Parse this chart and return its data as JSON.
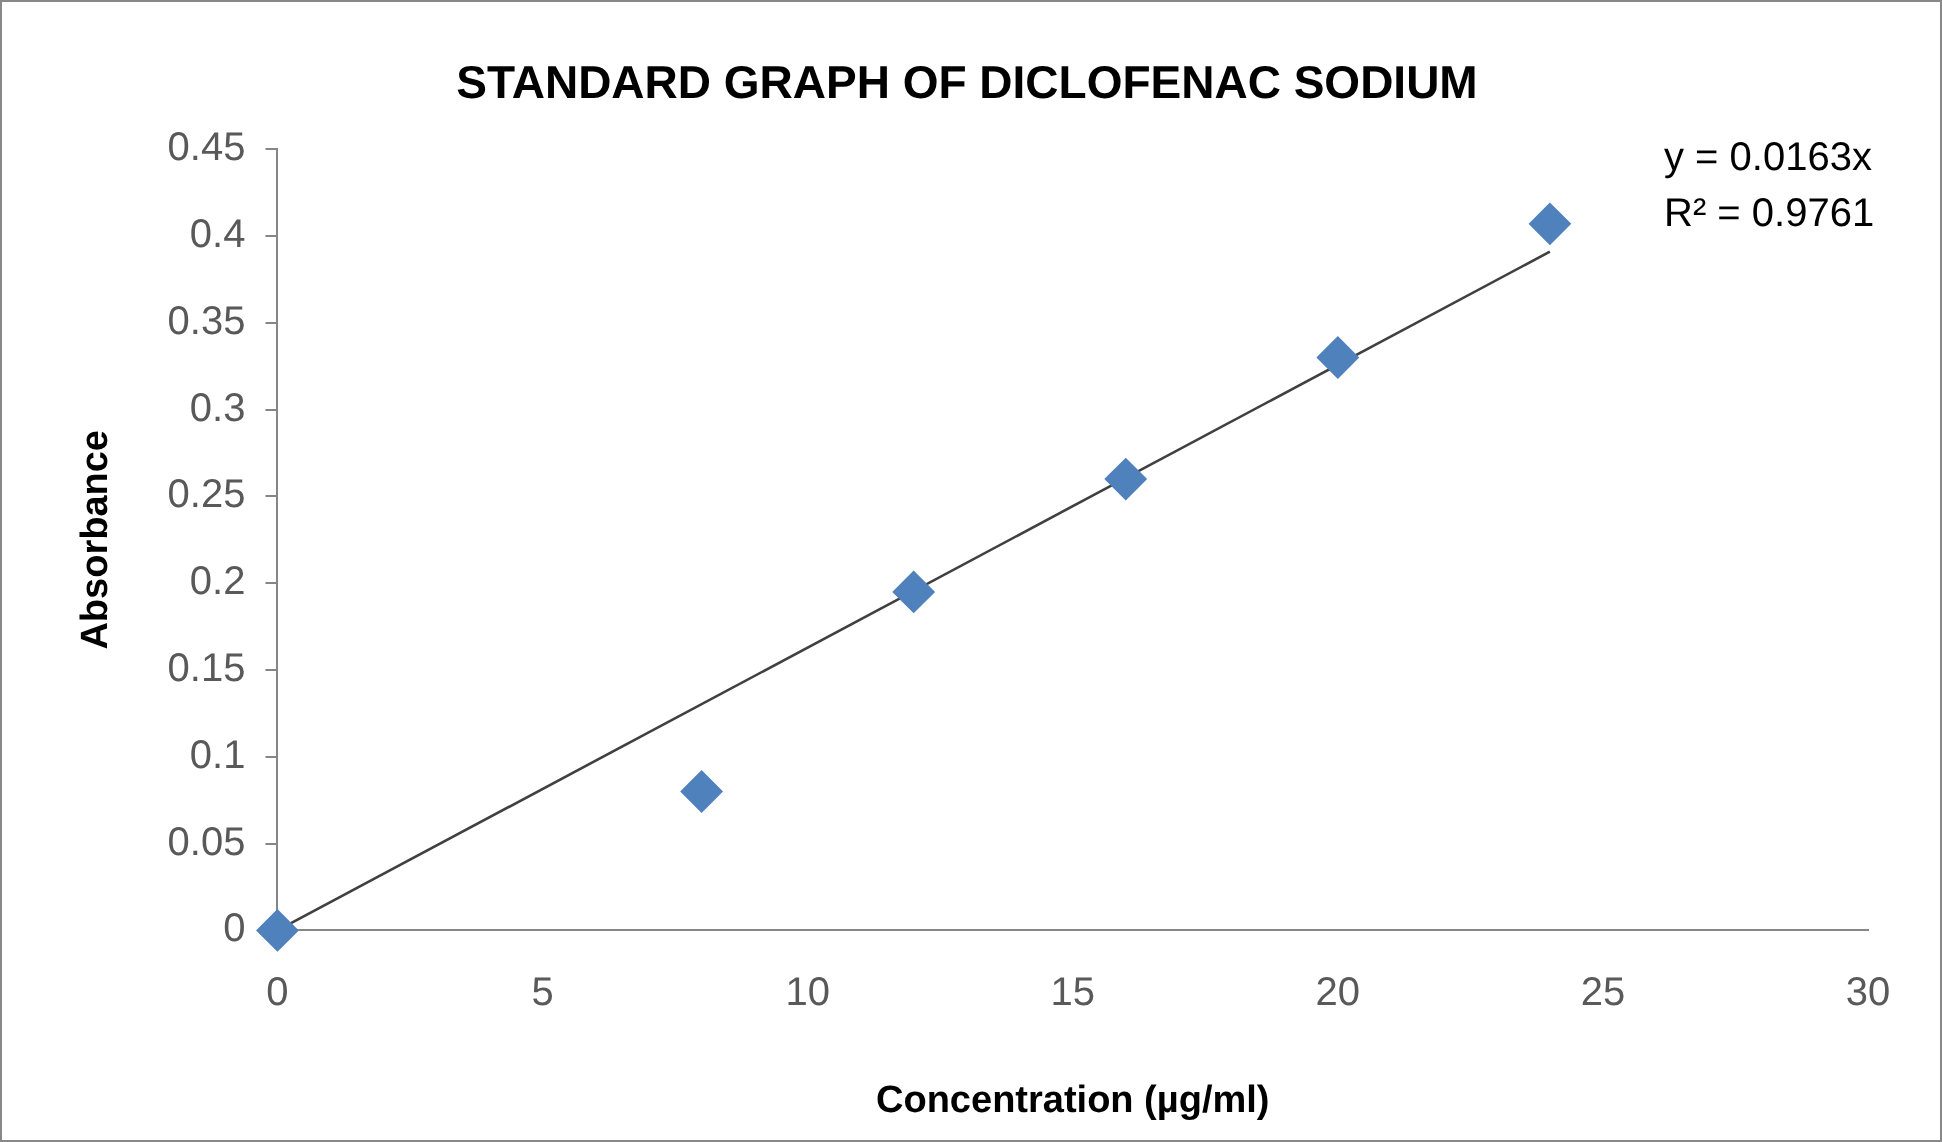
{
  "chart_data": {
    "type": "scatter",
    "title": "STANDARD GRAPH OF DICLOFENAC SODIUM",
    "xlabel": "Concentration (µg/ml)",
    "ylabel": "Absorbance",
    "annotations": [
      "y = 0.0163x",
      "R² = 0.9761"
    ],
    "series": [
      {
        "color": "#4f81bd",
        "x": [
          0,
          8,
          12,
          16,
          20,
          24
        ],
        "values": [
          0,
          0.08,
          0.195,
          0.26,
          0.33,
          0.407
        ]
      },
      {
        "type": "line",
        "color": "#404040",
        "marker": "none",
        "x": [
          0,
          24
        ],
        "values": [
          0,
          0.391
        ]
      }
    ],
    "xlim": [
      0,
      30
    ],
    "xticks": [
      0,
      5,
      10,
      15,
      20,
      25,
      30
    ],
    "ylim": [
      0,
      0.45
    ],
    "yticks": [
      0,
      0.05,
      0.1,
      0.15,
      0.2,
      0.25,
      0.3,
      0.35,
      0.4,
      0.45
    ],
    "grid": false,
    "legend": false,
    "marker": "diamond"
  }
}
